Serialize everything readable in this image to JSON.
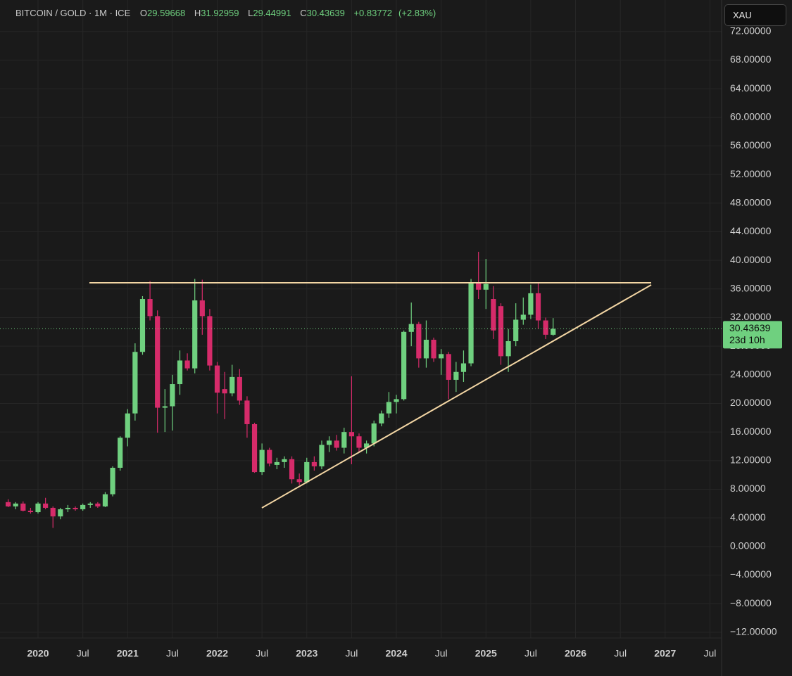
{
  "chart_data": {
    "type": "candlestick",
    "title": "BITCOIN / GOLD · 1M · ICE",
    "ohlc_letters": [
      "O",
      "H",
      "L",
      "C"
    ],
    "change": {
      "value": 0.83772,
      "label": "+0.83772"
    },
    "change_pct": {
      "value": 2.83,
      "label": "(+2.83%)"
    },
    "currency": "XAU",
    "countdown": "23d 10h",
    "up_color": "#6fd07f",
    "down_color": "#d62b6a",
    "x": [
      "2019-09",
      "2019-10",
      "2019-11",
      "2019-12",
      "2020-01",
      "2020-02",
      "2020-03",
      "2020-04",
      "2020-05",
      "2020-06",
      "2020-07",
      "2020-08",
      "2020-09",
      "2020-10",
      "2020-11",
      "2020-12",
      "2021-01",
      "2021-02",
      "2021-03",
      "2021-04",
      "2021-05",
      "2021-06",
      "2021-07",
      "2021-08",
      "2021-09",
      "2021-10",
      "2021-11",
      "2021-12",
      "2022-01",
      "2022-02",
      "2022-03",
      "2022-04",
      "2022-05",
      "2022-06",
      "2022-07",
      "2022-08",
      "2022-09",
      "2022-10",
      "2022-11",
      "2022-12",
      "2023-01",
      "2023-02",
      "2023-03",
      "2023-04",
      "2023-05",
      "2023-06",
      "2023-07",
      "2023-08",
      "2023-09",
      "2023-10",
      "2023-11",
      "2023-12",
      "2024-01",
      "2024-02",
      "2024-03",
      "2024-04",
      "2024-05",
      "2024-06",
      "2024-07",
      "2024-08",
      "2024-09",
      "2024-10",
      "2024-11",
      "2024-12",
      "2025-01",
      "2025-02",
      "2025-03",
      "2025-04",
      "2025-05",
      "2025-06",
      "2025-07",
      "2025-08",
      "2025-09",
      "2025-10"
    ],
    "open": [
      6.2,
      5.6,
      6.0,
      5.0,
      4.8,
      6.0,
      5.4,
      4.2,
      5.2,
      5.4,
      5.2,
      5.8,
      6.0,
      5.6,
      7.3,
      11.0,
      15.2,
      18.6,
      27.2,
      34.6,
      32.2,
      19.4,
      19.6,
      22.7,
      26.0,
      24.9,
      34.4,
      32.2,
      25.3,
      22.0,
      21.4,
      23.7,
      20.4,
      17.1,
      10.4,
      13.5,
      11.4,
      11.8,
      12.2,
      9.4,
      9.0,
      11.8,
      11.2,
      14.2,
      14.8,
      13.8,
      16.0,
      15.4,
      13.8,
      14.4,
      17.2,
      18.6,
      20.2,
      20.6,
      30.0,
      31.1,
      26.3,
      28.9,
      26.3,
      26.9,
      23.3,
      24.4,
      25.6,
      36.9,
      35.9,
      34.6,
      33.6,
      26.6,
      28.7,
      31.7,
      32.4,
      35.4,
      31.6,
      29.59668
    ],
    "high": [
      6.6,
      6.2,
      6.3,
      5.4,
      6.2,
      6.8,
      5.6,
      5.4,
      5.8,
      5.6,
      6.0,
      6.2,
      6.2,
      7.6,
      11.2,
      15.4,
      19.2,
      28.4,
      35.0,
      37.1,
      33.0,
      22.0,
      24.0,
      27.4,
      27.0,
      37.4,
      37.3,
      33.2,
      25.8,
      24.4,
      25.4,
      24.8,
      21.0,
      17.3,
      14.4,
      13.8,
      12.4,
      12.6,
      12.6,
      10.2,
      12.4,
      12.6,
      14.8,
      15.4,
      15.6,
      16.6,
      23.8,
      15.8,
      14.8,
      17.6,
      19.0,
      21.6,
      21.2,
      30.2,
      34.1,
      31.4,
      31.6,
      29.2,
      27.6,
      27.2,
      25.8,
      27.4,
      37.4,
      41.2,
      40.2,
      36.4,
      34.0,
      30.4,
      34.0,
      34.8,
      36.6,
      36.8,
      32.0,
      31.92959
    ],
    "low": [
      5.5,
      5.2,
      4.9,
      4.6,
      4.6,
      5.2,
      2.6,
      3.8,
      4.8,
      5.0,
      5.0,
      5.4,
      5.4,
      5.5,
      7.0,
      10.6,
      14.0,
      17.6,
      26.8,
      31.6,
      15.9,
      16.0,
      16.2,
      21.2,
      24.6,
      24.2,
      29.6,
      24.6,
      18.6,
      17.8,
      21.0,
      19.8,
      15.2,
      10.3,
      10.0,
      11.2,
      10.8,
      11.0,
      8.8,
      8.6,
      8.8,
      10.6,
      10.8,
      13.2,
      13.4,
      13.0,
      11.5,
      13.2,
      13.0,
      14.0,
      16.8,
      18.0,
      18.6,
      20.4,
      28.0,
      25.0,
      25.0,
      25.8,
      24.0,
      20.6,
      21.6,
      23.0,
      25.2,
      34.6,
      33.2,
      29.0,
      25.4,
      24.4,
      28.0,
      31.0,
      31.8,
      30.4,
      29.0,
      29.44991
    ],
    "close": [
      5.6,
      6.0,
      5.0,
      4.8,
      6.0,
      5.4,
      4.2,
      5.2,
      5.4,
      5.2,
      5.8,
      6.0,
      5.6,
      7.3,
      11.0,
      15.2,
      18.6,
      27.2,
      34.6,
      32.2,
      19.4,
      19.6,
      22.7,
      26.0,
      24.9,
      34.4,
      32.2,
      25.3,
      21.5,
      21.4,
      23.7,
      20.4,
      17.1,
      10.4,
      13.5,
      11.6,
      11.8,
      12.2,
      9.4,
      9.0,
      11.8,
      11.2,
      14.2,
      14.8,
      13.8,
      16.0,
      15.4,
      13.8,
      14.4,
      17.2,
      18.6,
      20.2,
      20.6,
      30.0,
      31.1,
      26.3,
      28.9,
      26.3,
      26.9,
      23.3,
      24.4,
      25.6,
      36.9,
      35.9,
      36.7,
      30.2,
      26.6,
      28.7,
      31.7,
      32.4,
      35.4,
      31.6,
      29.6,
      30.43639
    ],
    "xlim": [
      "2019-08",
      "2027-08"
    ],
    "xticks": [
      {
        "value": "2020-01",
        "label": "2020"
      },
      {
        "value": "2020-07",
        "label": "Jul"
      },
      {
        "value": "2021-01",
        "label": "2021"
      },
      {
        "value": "2021-07",
        "label": "Jul"
      },
      {
        "value": "2022-01",
        "label": "2022"
      },
      {
        "value": "2022-07",
        "label": "Jul"
      },
      {
        "value": "2023-01",
        "label": "2023"
      },
      {
        "value": "2023-07",
        "label": "Jul"
      },
      {
        "value": "2024-01",
        "label": "2024"
      },
      {
        "value": "2024-07",
        "label": "Jul"
      },
      {
        "value": "2025-01",
        "label": "2025"
      },
      {
        "value": "2025-07",
        "label": "Jul"
      },
      {
        "value": "2026-01",
        "label": "2026"
      },
      {
        "value": "2026-07",
        "label": "Jul"
      },
      {
        "value": "2027-01",
        "label": "2027"
      },
      {
        "value": "2027-07",
        "label": "Jul"
      }
    ],
    "ylim": [
      -12.8,
      76.4
    ],
    "yticks": [
      {
        "value": 72,
        "label": "72.00000"
      },
      {
        "value": 68,
        "label": "68.00000"
      },
      {
        "value": 64,
        "label": "64.00000"
      },
      {
        "value": 60,
        "label": "60.00000"
      },
      {
        "value": 56,
        "label": "56.00000"
      },
      {
        "value": 52,
        "label": "52.00000"
      },
      {
        "value": 48,
        "label": "48.00000"
      },
      {
        "value": 44,
        "label": "44.00000"
      },
      {
        "value": 40,
        "label": "40.00000"
      },
      {
        "value": 36,
        "label": "36.00000"
      },
      {
        "value": 32,
        "label": "32.00000"
      },
      {
        "value": 28,
        "label": "28.00000"
      },
      {
        "value": 24,
        "label": "24.00000"
      },
      {
        "value": 20,
        "label": "20.00000"
      },
      {
        "value": 16,
        "label": "16.00000"
      },
      {
        "value": 12,
        "label": "12.00000"
      },
      {
        "value": 8,
        "label": "8.00000"
      },
      {
        "value": 4,
        "label": "4.00000"
      },
      {
        "value": 0,
        "label": "0.00000"
      },
      {
        "value": -4,
        "label": "−4.00000"
      },
      {
        "value": -8,
        "label": "−8.00000"
      },
      {
        "value": -12,
        "label": "−12.00000"
      }
    ],
    "grid": true
  }
}
